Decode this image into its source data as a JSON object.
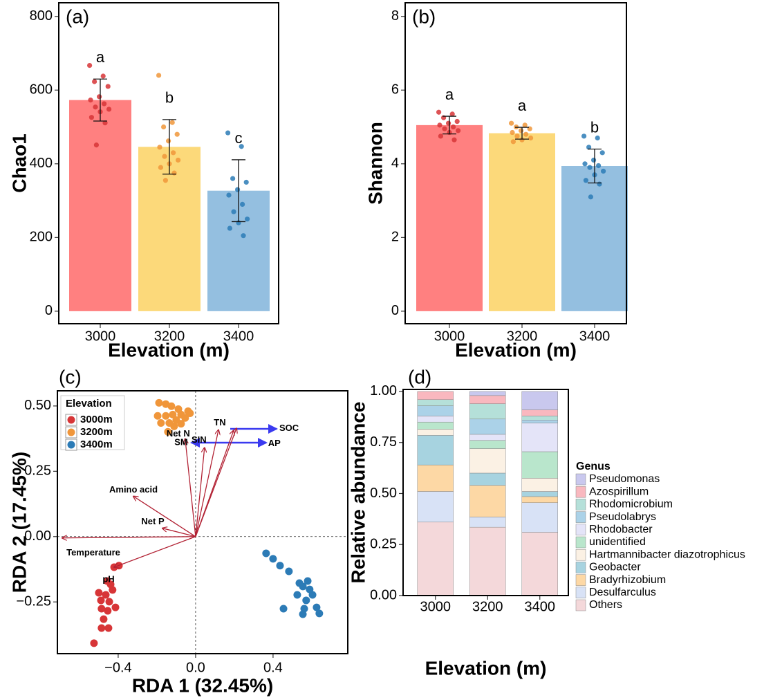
{
  "chart_data": [
    {
      "type": "bar",
      "label": "(a)",
      "xlabel": "Elevation (m)",
      "ylabel": "Chao1",
      "categories": [
        "3000",
        "3200",
        "3400"
      ],
      "values": [
        573,
        446,
        327
      ],
      "errors": [
        57,
        74,
        84
      ],
      "colors": [
        "#ff8080",
        "#fcd97a",
        "#94bfe0"
      ],
      "point_colors": [
        "#d73537",
        "#f0963a",
        "#2c7bb6"
      ],
      "points": [
        [
          667,
          638,
          623,
          610,
          582,
          573,
          563,
          554,
          548,
          541,
          526,
          511,
          451
        ],
        [
          640,
          512,
          500,
          480,
          462,
          445,
          430,
          420,
          410,
          400,
          390,
          375,
          355
        ],
        [
          484,
          447,
          360,
          350,
          330,
          315,
          290,
          270,
          250,
          240,
          225,
          205
        ]
      ],
      "letters": [
        "a",
        "b",
        "c"
      ],
      "ylim": [
        -34,
        837
      ],
      "yticks": [
        0,
        200,
        400,
        600,
        800
      ]
    },
    {
      "type": "bar",
      "label": "(b)",
      "xlabel": "Elevation (m)",
      "ylabel": "Shannon",
      "categories": [
        "3000",
        "3200",
        "3400"
      ],
      "values": [
        5.05,
        4.83,
        3.94
      ],
      "errors": [
        0.24,
        0.16,
        0.46
      ],
      "colors": [
        "#ff8080",
        "#fcd97a",
        "#94bfe0"
      ],
      "point_colors": [
        "#d73537",
        "#f0963a",
        "#2c7bb6"
      ],
      "points": [
        [
          5.4,
          5.35,
          5.25,
          5.15,
          5.1,
          5.05,
          5.0,
          4.95,
          4.9,
          4.85,
          4.75,
          4.65
        ],
        [
          5.1,
          5.05,
          5.0,
          4.95,
          4.9,
          4.85,
          4.8,
          4.75,
          4.7,
          4.65,
          4.6
        ],
        [
          4.75,
          4.7,
          4.45,
          4.3,
          4.1,
          4.0,
          3.95,
          3.9,
          3.8,
          3.7,
          3.55,
          3.45,
          3.1
        ]
      ],
      "letters": [
        "a",
        "a",
        "b"
      ],
      "ylim": [
        -0.34,
        8.37
      ],
      "yticks": [
        0,
        2,
        4,
        6,
        8
      ]
    },
    {
      "type": "scatter",
      "label": "(c)",
      "xlabel": "RDA 1 (32.45%)",
      "ylabel": "RDA 2 (17.45%)",
      "legend_title": "Elevation",
      "legend": "top-left",
      "series": [
        {
          "name": "3000m",
          "color": "#d73537",
          "x": [
            -0.525,
            -0.486,
            -0.45,
            -0.475,
            -0.454,
            -0.486,
            -0.446,
            -0.489,
            -0.414,
            -0.464,
            -0.5,
            -0.429,
            -0.457,
            -0.439,
            -0.421,
            -0.396
          ],
          "y": [
            -0.408,
            -0.35,
            -0.35,
            -0.316,
            -0.284,
            -0.276,
            -0.249,
            -0.244,
            -0.271,
            -0.223,
            -0.215,
            -0.204,
            -0.17,
            -0.183,
            -0.117,
            -0.111
          ]
        },
        {
          "name": "3200m",
          "color": "#f0963a",
          "x": [
            -0.189,
            -0.154,
            -0.125,
            -0.089,
            -0.039,
            -0.075,
            -0.118,
            -0.154,
            -0.196,
            -0.054,
            -0.1,
            -0.136,
            -0.179,
            -0.075,
            -0.111,
            -0.143,
            -0.029
          ],
          "y": [
            0.512,
            0.507,
            0.499,
            0.488,
            0.48,
            0.467,
            0.467,
            0.462,
            0.462,
            0.454,
            0.446,
            0.435,
            0.435,
            0.432,
            0.422,
            0.401,
            0.472
          ]
        },
        {
          "name": "3400m",
          "color": "#2c7bb6",
          "x": [
            0.364,
            0.4,
            0.436,
            0.482,
            0.536,
            0.554,
            0.525,
            0.571,
            0.604,
            0.561,
            0.625,
            0.454,
            0.639,
            0.554,
            0.579,
            0.589
          ],
          "y": [
            -0.064,
            -0.085,
            -0.111,
            -0.133,
            -0.178,
            -0.191,
            -0.223,
            -0.244,
            -0.223,
            -0.276,
            -0.271,
            -0.276,
            -0.294,
            -0.297,
            -0.17,
            -0.202
          ]
        }
      ],
      "arrows": [
        {
          "name": "TN",
          "x": 0.118,
          "y": 0.408
        },
        {
          "name": "SIN",
          "x": 0.046,
          "y": 0.34
        },
        {
          "name": "Net N",
          "x": -0.054,
          "y": 0.374
        },
        {
          "name": "Amino acid",
          "x": -0.321,
          "y": 0.154
        },
        {
          "name": "Net P",
          "x": -0.171,
          "y": 0.032
        },
        {
          "name": "Temperature",
          "x": -0.689,
          "y": -0.005
        },
        {
          "name": "pH",
          "x": -0.421,
          "y": -0.117
        },
        {
          "name": "SOC",
          "x": 0.211,
          "y": 0.414
        },
        {
          "name": "AP",
          "x": 0.196,
          "y": 0.406
        }
      ],
      "annotations": [
        "SM"
      ],
      "xlim": [
        -0.714,
        0.786
      ],
      "ylim": [
        -0.448,
        0.558
      ],
      "xticks": [
        {
          "value": -0.4,
          "label": "−0.4"
        },
        {
          "value": 0,
          "label": "0.0"
        },
        0.4
      ],
      "yticks": [
        {
          "value": -0.25,
          "label": "−0.25"
        },
        {
          "value": 0,
          "label": "0.00"
        },
        {
          "value": 0.25,
          "label": "0.25"
        },
        {
          "value": 0.5,
          "label": "0.50"
        }
      ]
    },
    {
      "type": "stacked_bar",
      "label": "(d)",
      "xlabel": "Elevation (m)",
      "ylabel": "Relative abundance",
      "legend_title": "Genus",
      "legend": "right",
      "categories": [
        "3000",
        "3200",
        "3400"
      ],
      "series": [
        {
          "name": "Pseudomonas",
          "color": "#c9c8ee",
          "values": [
            0,
            0.02,
            0.09
          ]
        },
        {
          "name": "Azospirillum",
          "color": "#f9b8bf",
          "values": [
            0.04,
            0.04,
            0.03
          ]
        },
        {
          "name": "Rhodomicrobium",
          "color": "#b5e0d9",
          "values": [
            0.03,
            0.075,
            0.02
          ]
        },
        {
          "name": "Pseudolabrys",
          "color": "#abd2e8",
          "values": [
            0.05,
            0.075,
            0.015
          ]
        },
        {
          "name": "Rhodobacter",
          "color": "#e4e4f8",
          "values": [
            0.03,
            0.03,
            0.14
          ]
        },
        {
          "name": "unidentified",
          "color": "#b9e6cc",
          "values": [
            0.035,
            0.04,
            0.13
          ]
        },
        {
          "name": "Hartmannibacter diazotrophicus",
          "color": "#fbf1e4",
          "values": [
            0.03,
            0.12,
            0.065
          ]
        },
        {
          "name": "Geobacter",
          "color": "#a7d3e0",
          "values": [
            0.145,
            0.06,
            0.025
          ]
        },
        {
          "name": "Bradyrhizobium",
          "color": "#fdd8a5",
          "values": [
            0.13,
            0.155,
            0.03
          ]
        },
        {
          "name": "Desulfarculus",
          "color": "#d8e2f6",
          "values": [
            0.15,
            0.05,
            0.145
          ]
        },
        {
          "name": "Others",
          "color": "#f4d8da",
          "values": [
            0.36,
            0.335,
            0.31
          ]
        }
      ],
      "ylim": [
        0,
        1.01
      ],
      "yticks": [
        {
          "value": 0,
          "label": "0.00"
        },
        {
          "value": 0.25,
          "label": "0.25"
        },
        {
          "value": 0.5,
          "label": "0.50"
        },
        {
          "value": 0.75,
          "label": "0.75"
        },
        {
          "value": 1,
          "label": "1.00"
        }
      ]
    }
  ]
}
